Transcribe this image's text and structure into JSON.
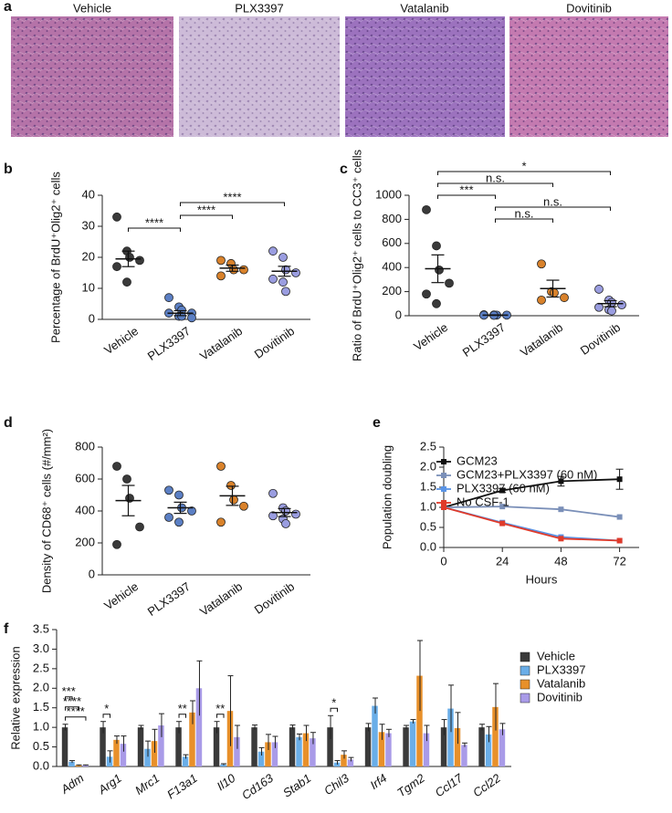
{
  "images": {
    "panel": "a",
    "titles": [
      "Vehicle",
      "PLX3397",
      "Vatalanib",
      "Dovitinib"
    ]
  },
  "chart_data": [
    {
      "type": "dot",
      "panel": "b",
      "ylabel": "Percentage of BrdU⁺Olig2⁺ cells",
      "categories": [
        "Vehicle",
        "PLX3397",
        "Vatalanib",
        "Dovitinib"
      ],
      "colors": [
        "#3a3a3a",
        "#5b7fc4",
        "#d9822b",
        "#9a9de0"
      ],
      "points": [
        [
          33,
          22,
          20,
          19,
          17,
          12
        ],
        [
          7,
          4,
          3,
          2,
          2,
          1,
          1,
          0.5
        ],
        [
          19,
          18,
          16,
          16,
          14
        ],
        [
          22,
          20,
          16,
          15,
          13,
          12,
          9
        ]
      ],
      "means": [
        19.5,
        2,
        16.5,
        15.5
      ],
      "sems": [
        2.5,
        0.8,
        1,
        1.6
      ],
      "ylim": [
        0,
        40
      ],
      "yticks": [
        0,
        10,
        20,
        30,
        40
      ],
      "brackets": [
        {
          "from": 1,
          "to": 3,
          "label": "****"
        },
        {
          "from": 1,
          "to": 2,
          "label": "****"
        },
        {
          "from": 0,
          "to": 1,
          "label": "****"
        }
      ]
    },
    {
      "type": "dot",
      "panel": "c",
      "ylabel": "Ratio of BrdU⁺Olig2⁺ cells to CC3⁺ cells",
      "categories": [
        "Vehicle",
        "PLX3397",
        "Vatalanib",
        "Dovitinib"
      ],
      "colors": [
        "#3a3a3a",
        "#5b7fc4",
        "#d9822b",
        "#9a9de0"
      ],
      "points": [
        [
          880,
          580,
          380,
          270,
          180,
          100
        ],
        [
          8,
          6,
          5,
          5,
          4,
          3
        ],
        [
          430,
          200,
          190,
          150,
          130
        ],
        [
          220,
          130,
          110,
          90,
          70,
          50,
          40
        ]
      ],
      "means": [
        390,
        5,
        225,
        100
      ],
      "sems": [
        115,
        2,
        70,
        25
      ],
      "ylim": [
        0,
        1000
      ],
      "yticks": [
        0,
        200,
        400,
        600,
        800,
        1000
      ],
      "brackets": [
        {
          "from": 0,
          "to": 3,
          "label": "*"
        },
        {
          "from": 0,
          "to": 2,
          "label": "n.s."
        },
        {
          "from": 0,
          "to": 1,
          "label": "***"
        },
        {
          "from": 1,
          "to": 3,
          "label": "n.s."
        },
        {
          "from": 1,
          "to": 2,
          "label": "n.s."
        }
      ]
    },
    {
      "type": "dot",
      "panel": "d",
      "ylabel": "Density of CD68⁺ cells (#/mm²)",
      "categories": [
        "Vehicle",
        "PLX3397",
        "Vatalanib",
        "Dovitinib"
      ],
      "colors": [
        "#3a3a3a",
        "#5b7fc4",
        "#d9822b",
        "#9a9de0"
      ],
      "points": [
        [
          680,
          600,
          480,
          300,
          190
        ],
        [
          530,
          500,
          420,
          400,
          360,
          330
        ],
        [
          680,
          560,
          470,
          430,
          330
        ],
        [
          510,
          420,
          400,
          380,
          370,
          350,
          320
        ]
      ],
      "means": [
        465,
        420,
        495,
        390
      ],
      "sems": [
        95,
        35,
        60,
        25
      ],
      "ylim": [
        0,
        800
      ],
      "yticks": [
        0,
        200,
        400,
        600,
        800
      ],
      "brackets": []
    },
    {
      "type": "line",
      "panel": "e",
      "xlabel": "Hours",
      "ylabel": "Population doubling",
      "x": [
        0,
        24,
        48,
        72
      ],
      "xlim": [
        0,
        80
      ],
      "xticks": [
        0,
        24,
        48,
        72
      ],
      "ylim": [
        0,
        2.5
      ],
      "yticks": [
        {
          "value": 0,
          "label": "0.0"
        },
        0.5,
        {
          "value": 1,
          "label": "1.0"
        },
        1.5,
        {
          "value": 2,
          "label": "2.0"
        },
        2.5
      ],
      "series": [
        {
          "name": "GCM23",
          "color": "#111111",
          "values": [
            1,
            1.42,
            1.65,
            1.7
          ],
          "errors": [
            0,
            0.05,
            0.12,
            0.25
          ]
        },
        {
          "name": "GCM23+PLX3397 (60 nM)",
          "color": "#7a8fb8",
          "values": [
            1,
            1.02,
            0.95,
            0.76
          ]
        },
        {
          "name": "PLX3397 (60 nM)",
          "color": "#5a94e6",
          "values": [
            1,
            0.62,
            0.26,
            0.17
          ]
        },
        {
          "name": "No CSF-1",
          "color": "#e03a2a",
          "values": [
            1,
            0.6,
            0.22,
            0.17
          ]
        }
      ]
    },
    {
      "type": "bar",
      "panel": "f",
      "ylabel": "Relative expression",
      "categories": [
        "Adm",
        "Arg1",
        "Mrc1",
        "F13a1",
        "Il10",
        "Cd163",
        "Stab1",
        "Chil3",
        "Irf4",
        "Tgm2",
        "Ccl17",
        "Ccl22"
      ],
      "ylim": [
        0,
        3.5
      ],
      "yticks": [
        {
          "value": 0,
          "label": "0.0"
        },
        0.5,
        {
          "value": 1,
          "label": "1.0"
        },
        1.5,
        {
          "value": 2,
          "label": "2.0"
        },
        2.5,
        {
          "value": 3,
          "label": "3.0"
        },
        3.5
      ],
      "series": [
        {
          "name": "Vehicle",
          "color": "#3a3a3a",
          "values": [
            1,
            1,
            1,
            1,
            1,
            1,
            1,
            1,
            1,
            1,
            1,
            1
          ],
          "errors": [
            0.08,
            0.15,
            0.05,
            0.15,
            0.15,
            0.06,
            0.06,
            0.3,
            0.1,
            0.05,
            0.2,
            0.08
          ]
        },
        {
          "name": "PLX3397",
          "color": "#6aaee8",
          "values": [
            0.12,
            0.25,
            0.45,
            0.25,
            0.05,
            0.38,
            0.75,
            0.1,
            1.55,
            1.15,
            1.48,
            0.82
          ],
          "errors": [
            0.03,
            0.15,
            0.2,
            0.05,
            0.02,
            0.1,
            0.08,
            0.05,
            0.2,
            0.05,
            0.6,
            0.2
          ]
        },
        {
          "name": "Vatalanib",
          "color": "#e8902a",
          "values": [
            0.03,
            0.68,
            0.65,
            1.38,
            1.42,
            0.62,
            0.85,
            0.3,
            0.88,
            2.32,
            0.98,
            1.52
          ],
          "errors": [
            0.01,
            0.1,
            0.3,
            0.3,
            0.9,
            0.2,
            0.2,
            0.1,
            0.2,
            0.9,
            0.4,
            0.6
          ]
        },
        {
          "name": "Dovitinib",
          "color": "#a99be8",
          "values": [
            0.03,
            0.58,
            1.05,
            2.0,
            0.75,
            0.62,
            0.72,
            0.18,
            0.85,
            0.85,
            0.55,
            0.95
          ],
          "errors": [
            0.01,
            0.2,
            0.3,
            0.7,
            0.3,
            0.15,
            0.15,
            0.05,
            0.1,
            0.2,
            0.05,
            0.15
          ]
        }
      ],
      "brackets": [
        {
          "category": 0,
          "from": 0,
          "to": 3,
          "label": "****"
        },
        {
          "category": 0,
          "from": 0,
          "to": 2,
          "label": "****"
        },
        {
          "category": 0,
          "from": 0,
          "to": 1,
          "label": "***"
        },
        {
          "category": 1,
          "from": 0,
          "to": 1,
          "label": "*"
        },
        {
          "category": 3,
          "from": 0,
          "to": 1,
          "label": "**"
        },
        {
          "category": 4,
          "from": 0,
          "to": 1,
          "label": "**"
        },
        {
          "category": 7,
          "from": 0,
          "to": 1,
          "label": "*"
        }
      ]
    }
  ]
}
